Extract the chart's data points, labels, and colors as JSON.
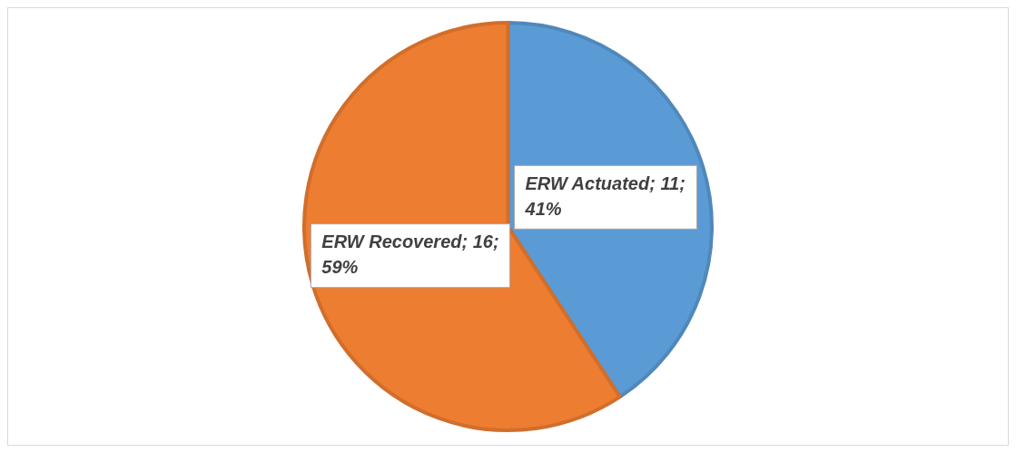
{
  "chart_data": {
    "type": "pie",
    "categories": [
      "ERW Actuated",
      "ERW Recovered"
    ],
    "values": [
      11,
      16
    ],
    "colors": [
      "#5b9bd5",
      "#ed7d31"
    ],
    "value_labels": [
      "11; 41%",
      "16; 59%"
    ],
    "legend": false
  }
}
